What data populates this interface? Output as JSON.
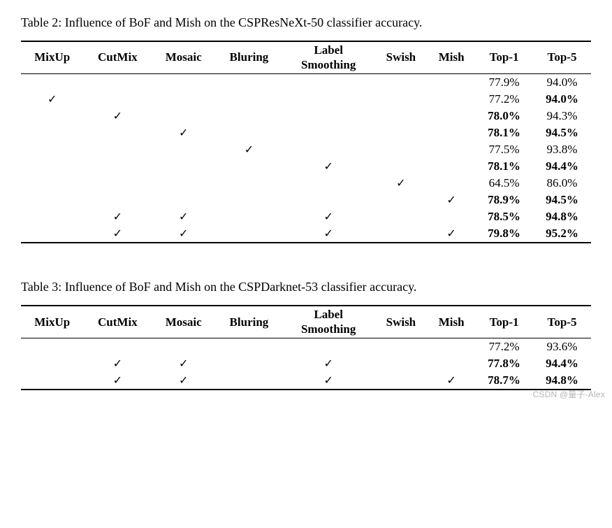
{
  "check_glyph": "✓",
  "watermark": "CSDN @量子-Alex",
  "table2": {
    "caption": "Table 2: Influence of BoF and Mish on the CSPResNeXt-50 classifier accuracy.",
    "columns": [
      "MixUp",
      "CutMix",
      "Mosaic",
      "Bluring",
      "Label\nSmoothing",
      "Swish",
      "Mish",
      "Top-1",
      "Top-5"
    ],
    "rows": [
      {
        "c": [
          0,
          0,
          0,
          0,
          0,
          0,
          0
        ],
        "top1": "77.9%",
        "top5": "94.0%",
        "bold1": false,
        "bold5": false
      },
      {
        "c": [
          1,
          0,
          0,
          0,
          0,
          0,
          0
        ],
        "top1": "77.2%",
        "top5": "94.0%",
        "bold1": false,
        "bold5": true
      },
      {
        "c": [
          0,
          1,
          0,
          0,
          0,
          0,
          0
        ],
        "top1": "78.0%",
        "top5": "94.3%",
        "bold1": true,
        "bold5": false
      },
      {
        "c": [
          0,
          0,
          1,
          0,
          0,
          0,
          0
        ],
        "top1": "78.1%",
        "top5": "94.5%",
        "bold1": true,
        "bold5": true
      },
      {
        "c": [
          0,
          0,
          0,
          1,
          0,
          0,
          0
        ],
        "top1": "77.5%",
        "top5": "93.8%",
        "bold1": false,
        "bold5": false
      },
      {
        "c": [
          0,
          0,
          0,
          0,
          1,
          0,
          0
        ],
        "top1": "78.1%",
        "top5": "94.4%",
        "bold1": true,
        "bold5": true
      },
      {
        "c": [
          0,
          0,
          0,
          0,
          0,
          1,
          0
        ],
        "top1": "64.5%",
        "top5": "86.0%",
        "bold1": false,
        "bold5": false
      },
      {
        "c": [
          0,
          0,
          0,
          0,
          0,
          0,
          1
        ],
        "top1": "78.9%",
        "top5": "94.5%",
        "bold1": true,
        "bold5": true
      },
      {
        "c": [
          0,
          1,
          1,
          0,
          1,
          0,
          0
        ],
        "top1": "78.5%",
        "top5": "94.8%",
        "bold1": true,
        "bold5": true
      },
      {
        "c": [
          0,
          1,
          1,
          0,
          1,
          0,
          1
        ],
        "top1": "79.8%",
        "top5": "95.2%",
        "bold1": true,
        "bold5": true
      }
    ]
  },
  "table3": {
    "caption": "Table 3: Influence of BoF and Mish on the CSPDarknet-53 classifier accuracy.",
    "columns": [
      "MixUp",
      "CutMix",
      "Mosaic",
      "Bluring",
      "Label\nSmoothing",
      "Swish",
      "Mish",
      "Top-1",
      "Top-5"
    ],
    "rows": [
      {
        "c": [
          0,
          0,
          0,
          0,
          0,
          0,
          0
        ],
        "top1": "77.2%",
        "top5": "93.6%",
        "bold1": false,
        "bold5": false
      },
      {
        "c": [
          0,
          1,
          1,
          0,
          1,
          0,
          0
        ],
        "top1": "77.8%",
        "top5": "94.4%",
        "bold1": true,
        "bold5": true
      },
      {
        "c": [
          0,
          1,
          1,
          0,
          1,
          0,
          1
        ],
        "top1": "78.7%",
        "top5": "94.8%",
        "bold1": true,
        "bold5": true
      }
    ]
  }
}
